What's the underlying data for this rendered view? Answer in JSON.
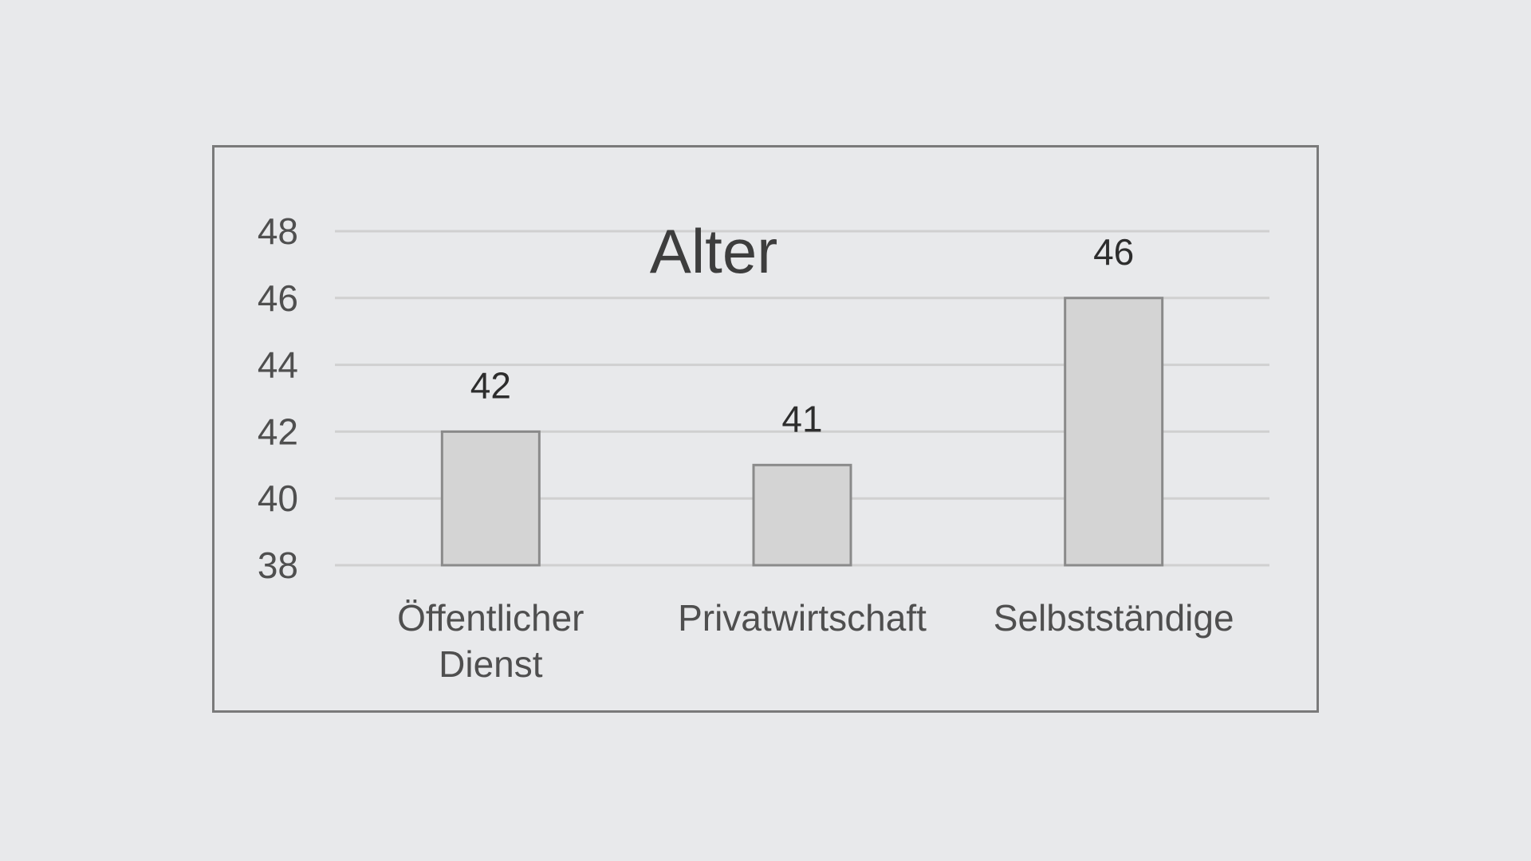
{
  "chart_data": {
    "type": "bar",
    "title": "Alter",
    "categories": [
      "Öffentlicher Dienst",
      "Privatwirtschaft",
      "Selbstständige"
    ],
    "category_lines": [
      [
        "Öffentlicher",
        "Dienst"
      ],
      [
        "Privatwirtschaft"
      ],
      [
        "Selbstständige"
      ]
    ],
    "values": [
      42,
      41,
      46
    ],
    "xlabel": "",
    "ylabel": "",
    "ylim": [
      38,
      48
    ],
    "yticks": [
      38,
      40,
      42,
      44,
      46,
      48
    ],
    "grid": true,
    "legend": "none",
    "colors": {
      "bar_fill": "#d4d4d4",
      "bar_stroke": "#8a8a8a",
      "grid": "#d0d0d0",
      "frame": "#7a7a7a",
      "background": "#e8e9eb"
    }
  }
}
